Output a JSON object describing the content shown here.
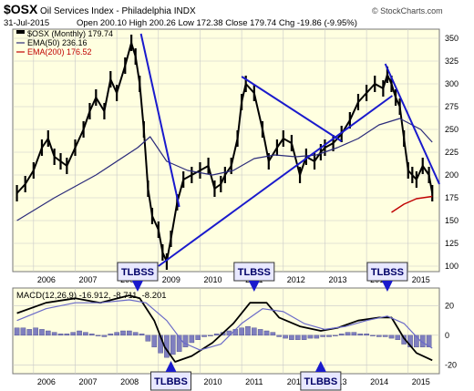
{
  "header": {
    "symbol": "$OSX",
    "name": "Oil Services Index - Philadelphia  INDX",
    "date": "31-Jul-2015",
    "quote": "Open 200.10  High 200.26  Low 172.38  Close 179.74  Chg -19.86 (-9.95%)",
    "brand": "© StockCharts.com",
    "legend_main": "$OSX (Monthly) 179.74",
    "legend_ema50": "EMA(50) 236.16",
    "legend_ema200": "EMA(200) 176.52"
  },
  "colors": {
    "background": "#ffffe0",
    "grid": "#c8c8c8",
    "price": "#000000",
    "ema50": "#2a2a7a",
    "ema200": "#c00000",
    "trendline": "#1a1acc",
    "histogram": "#7f7fbf",
    "macd_signal": "#6a6ac8",
    "callout_fill": "#e8e8ff",
    "callout_text": "#000066"
  },
  "chart_data": [
    {
      "type": "line",
      "panel": "price",
      "x_ticks": [
        "2006",
        "2007",
        "2008",
        "2009",
        "2010",
        "2011",
        "2012",
        "2013",
        "2014",
        "2015"
      ],
      "y_ticks": [
        100,
        125,
        150,
        175,
        200,
        225,
        250,
        275,
        300,
        325,
        350
      ],
      "ylim": [
        94,
        360
      ],
      "xlim": [
        2005.5,
        2015.75
      ],
      "series": [
        {
          "name": "$OSX (Monthly)",
          "x": [
            2005.6,
            2005.8,
            2006.0,
            2006.2,
            2006.35,
            2006.5,
            2006.65,
            2006.8,
            2007.0,
            2007.2,
            2007.35,
            2007.5,
            2007.7,
            2007.85,
            2008.0,
            2008.2,
            2008.35,
            2008.45,
            2008.55,
            2008.65,
            2008.75,
            2008.85,
            2009.0,
            2009.1,
            2009.2,
            2009.3,
            2009.45,
            2009.6,
            2009.8,
            2010.0,
            2010.2,
            2010.35,
            2010.5,
            2010.6,
            2010.75,
            2010.9,
            2011.0,
            2011.1,
            2011.3,
            2011.5,
            2011.65,
            2011.85,
            2012.0,
            2012.2,
            2012.4,
            2012.55,
            2012.75,
            2012.9,
            2013.0,
            2013.2,
            2013.4,
            2013.6,
            2013.8,
            2014.0,
            2014.2,
            2014.4,
            2014.5,
            2014.6,
            2014.7,
            2014.8,
            2014.9,
            2015.0,
            2015.1,
            2015.2,
            2015.35,
            2015.5,
            2015.58
          ],
          "values": [
            180,
            190,
            205,
            230,
            240,
            220,
            215,
            210,
            230,
            250,
            270,
            285,
            270,
            305,
            290,
            320,
            345,
            330,
            300,
            250,
            185,
            155,
            140,
            115,
            105,
            130,
            170,
            195,
            200,
            205,
            210,
            185,
            190,
            200,
            210,
            240,
            280,
            300,
            290,
            250,
            215,
            230,
            240,
            235,
            200,
            220,
            215,
            225,
            230,
            235,
            245,
            260,
            280,
            290,
            300,
            295,
            310,
            300,
            285,
            275,
            240,
            205,
            200,
            195,
            210,
            200,
            180
          ]
        },
        {
          "name": "EMA(50)",
          "x": [
            2005.6,
            2006.5,
            2007.5,
            2008.5,
            2008.8,
            2009.2,
            2009.7,
            2010.3,
            2010.8,
            2011.3,
            2011.8,
            2012.3,
            2012.8,
            2013.3,
            2013.8,
            2014.3,
            2014.8,
            2015.3,
            2015.58
          ],
          "values": [
            150,
            175,
            200,
            230,
            242,
            215,
            205,
            200,
            205,
            218,
            222,
            220,
            222,
            230,
            240,
            255,
            262,
            250,
            236
          ]
        },
        {
          "name": "EMA(200)",
          "x": [
            2014.6,
            2014.9,
            2015.2,
            2015.58
          ],
          "values": [
            159,
            168,
            174,
            176.5
          ]
        }
      ],
      "trendlines": [
        {
          "x": [
            2008.58,
            2009.5
          ],
          "values": [
            355,
            165
          ]
        },
        {
          "x": [
            2009.0,
            2014.62
          ],
          "values": [
            100,
            287
          ]
        },
        {
          "x": [
            2011.0,
            2013.4
          ],
          "values": [
            308,
            237
          ]
        },
        {
          "x": [
            2014.45,
            2015.75
          ],
          "values": [
            322,
            190
          ]
        }
      ]
    },
    {
      "type": "bar",
      "panel": "macd",
      "title": "MACD(12,26,9) -16.912, -8.711, -8.201",
      "x_ticks": [
        "2006",
        "2007",
        "2008",
        "2009",
        "2010",
        "2011",
        "2012",
        "2013",
        "2014",
        "2015"
      ],
      "y_ticks": [
        20,
        0,
        -20
      ],
      "ylim": [
        -26,
        32
      ],
      "xlim": [
        2005.5,
        2015.75
      ],
      "series": [
        {
          "name": "MACD",
          "x": [
            2005.6,
            2006.3,
            2007.0,
            2007.6,
            2008.3,
            2008.55,
            2008.9,
            2009.15,
            2009.4,
            2009.8,
            2010.3,
            2010.8,
            2011.2,
            2011.6,
            2011.9,
            2012.4,
            2012.9,
            2013.3,
            2013.8,
            2014.3,
            2014.6,
            2014.9,
            2015.2,
            2015.58
          ],
          "values": [
            15,
            22,
            25,
            22,
            27,
            25,
            10,
            -8,
            -18,
            -14,
            -5,
            8,
            22,
            22,
            12,
            6,
            3,
            5,
            10,
            12,
            12,
            -2,
            -12,
            -16.9
          ]
        },
        {
          "name": "Signal",
          "x": [
            2005.6,
            2006.3,
            2007.0,
            2007.6,
            2008.3,
            2008.7,
            2009.2,
            2009.6,
            2010.0,
            2010.5,
            2011.0,
            2011.5,
            2012.0,
            2012.5,
            2013.0,
            2013.5,
            2014.0,
            2014.5,
            2014.9,
            2015.3,
            2015.58
          ],
          "values": [
            10,
            18,
            22,
            22,
            24,
            22,
            10,
            -5,
            -10,
            -6,
            8,
            18,
            16,
            8,
            4,
            6,
            10,
            13,
            8,
            -4,
            -8.7
          ]
        }
      ],
      "histogram": {
        "x": [
          2005.6,
          2005.75,
          2005.9,
          2006.05,
          2006.2,
          2006.35,
          2006.5,
          2006.65,
          2006.8,
          2006.95,
          2007.1,
          2007.25,
          2007.4,
          2007.55,
          2007.7,
          2007.85,
          2008.0,
          2008.15,
          2008.3,
          2008.45,
          2008.6,
          2008.75,
          2008.9,
          2009.05,
          2009.2,
          2009.35,
          2009.5,
          2009.65,
          2009.8,
          2009.95,
          2010.1,
          2010.25,
          2010.4,
          2010.55,
          2010.7,
          2010.85,
          2011.0,
          2011.15,
          2011.3,
          2011.45,
          2011.6,
          2011.75,
          2011.9,
          2012.05,
          2012.2,
          2012.35,
          2012.5,
          2012.65,
          2012.8,
          2012.95,
          2013.1,
          2013.25,
          2013.4,
          2013.55,
          2013.7,
          2013.85,
          2014.0,
          2014.15,
          2014.3,
          2014.45,
          2014.6,
          2014.75,
          2014.9,
          2015.05,
          2015.2,
          2015.35,
          2015.5
        ],
        "values": [
          5,
          5,
          4,
          5,
          4,
          3,
          2,
          1,
          1,
          2,
          3,
          2,
          1,
          0,
          -1,
          1,
          2,
          3,
          3,
          2,
          1,
          -4,
          -8,
          -12,
          -15,
          -13,
          -11,
          -8,
          -5,
          -3,
          -1,
          0,
          1,
          2,
          3,
          4,
          5,
          6,
          5,
          4,
          3,
          2,
          -1,
          -2,
          -3,
          -3,
          -3,
          -2,
          -2,
          -1,
          -1,
          0,
          1,
          2,
          2,
          1,
          1,
          0,
          -1,
          -1,
          -2,
          -3,
          -6,
          -8,
          -8,
          -8,
          -8
        ]
      },
      "annotations": [
        {
          "text": "TLBSS",
          "x": 2008.5,
          "y": 32,
          "pointer": "down"
        },
        {
          "text": "TLBSS",
          "x": 2011.3,
          "y": 32,
          "pointer": "down"
        },
        {
          "text": "TLBSS",
          "x": 2014.5,
          "y": 32,
          "pointer": "down"
        },
        {
          "text": "TLBBS",
          "x": 2009.3,
          "y": -26,
          "pointer": "up"
        },
        {
          "text": "TLBBS",
          "x": 2012.9,
          "y": -26,
          "pointer": "up"
        }
      ]
    }
  ]
}
